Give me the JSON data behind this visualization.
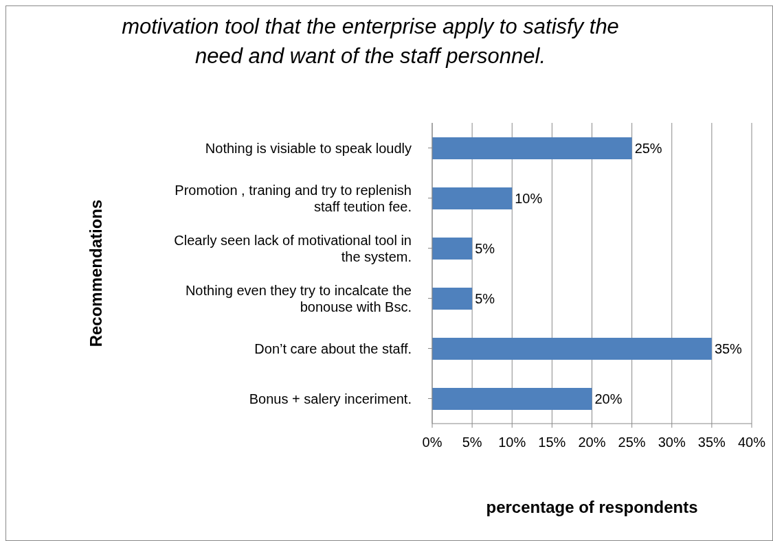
{
  "chart_data": {
    "type": "bar",
    "orientation": "horizontal",
    "title": "motivation tool that the enterprise apply to satisfy the need and want of the staff personnel.",
    "xlabel": "percentage of respondents",
    "ylabel": "Recommendations",
    "categories": [
      "Nothing is visiable to speak loudly",
      "Promotion , traning and try to replenish staff teution fee.",
      "Clearly seen lack of motivational tool in the system.",
      "Nothing even they try to incalcate the bonouse with Bsc.",
      "Don’t care about the staff.",
      "Bonus + salery inceriment."
    ],
    "values": [
      25,
      10,
      5,
      5,
      35,
      20
    ],
    "value_labels": [
      "25%",
      "10%",
      "5%",
      "5%",
      "35%",
      "20%"
    ],
    "color": "#4f81bd",
    "xlim": [
      0,
      40
    ],
    "xticks": [
      {
        "value": 0,
        "label": "0%"
      },
      {
        "value": 5,
        "label": "5%"
      },
      {
        "value": 10,
        "label": "10%"
      },
      {
        "value": 15,
        "label": "15%"
      },
      {
        "value": 20,
        "label": "20%"
      },
      {
        "value": 25,
        "label": "25%"
      },
      {
        "value": 30,
        "label": "30%"
      },
      {
        "value": 35,
        "label": "35%"
      },
      {
        "value": 40,
        "label": "40%"
      }
    ],
    "grid": "x",
    "legend": false
  }
}
